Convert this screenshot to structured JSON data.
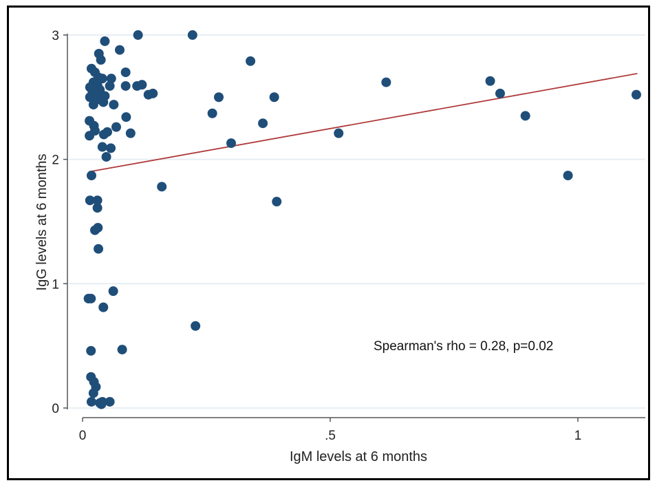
{
  "chart_data": {
    "type": "scatter",
    "xlabel": "IgM levels at 6 months",
    "ylabel": "IgG levels at 6 months",
    "xlim": [
      0,
      1.13
    ],
    "ylim": [
      0,
      3
    ],
    "x_ticks": [
      {
        "value": 0,
        "label": "0"
      },
      {
        "value": 0.5,
        "label": ".5"
      },
      {
        "value": 1,
        "label": "1"
      }
    ],
    "y_ticks": [
      {
        "value": 0,
        "label": "0"
      },
      {
        "value": 1,
        "label": "1"
      },
      {
        "value": 2,
        "label": "2"
      },
      {
        "value": 3,
        "label": "3"
      }
    ],
    "grid": "horizontal",
    "annotation": "Spearman's rho = 0.28, p=0.02",
    "colors": {
      "points": "#1f4e79",
      "fit_line": "#b03a3a",
      "grid": "#e6eef4",
      "axis": "#555555"
    },
    "fit_line": {
      "x": [
        0.013,
        1.12
      ],
      "y": [
        1.9,
        2.69
      ]
    },
    "points": [
      {
        "x": 0.033,
        "y": 2.85
      },
      {
        "x": 0.037,
        "y": 2.8
      },
      {
        "x": 0.045,
        "y": 2.95
      },
      {
        "x": 0.075,
        "y": 2.88
      },
      {
        "x": 0.112,
        "y": 3.0
      },
      {
        "x": 0.222,
        "y": 3.0
      },
      {
        "x": 0.339,
        "y": 2.79
      },
      {
        "x": 0.018,
        "y": 2.73
      },
      {
        "x": 0.025,
        "y": 2.7
      },
      {
        "x": 0.032,
        "y": 2.66
      },
      {
        "x": 0.04,
        "y": 2.65
      },
      {
        "x": 0.058,
        "y": 2.65
      },
      {
        "x": 0.087,
        "y": 2.7
      },
      {
        "x": 0.022,
        "y": 2.62
      },
      {
        "x": 0.03,
        "y": 2.6
      },
      {
        "x": 0.015,
        "y": 2.58
      },
      {
        "x": 0.035,
        "y": 2.56
      },
      {
        "x": 0.055,
        "y": 2.59
      },
      {
        "x": 0.087,
        "y": 2.59
      },
      {
        "x": 0.11,
        "y": 2.59
      },
      {
        "x": 0.12,
        "y": 2.6
      },
      {
        "x": 0.133,
        "y": 2.52
      },
      {
        "x": 0.142,
        "y": 2.53
      },
      {
        "x": 0.02,
        "y": 2.54
      },
      {
        "x": 0.03,
        "y": 2.52
      },
      {
        "x": 0.045,
        "y": 2.51
      },
      {
        "x": 0.015,
        "y": 2.5
      },
      {
        "x": 0.028,
        "y": 2.48
      },
      {
        "x": 0.042,
        "y": 2.46
      },
      {
        "x": 0.022,
        "y": 2.44
      },
      {
        "x": 0.063,
        "y": 2.44
      },
      {
        "x": 0.275,
        "y": 2.5
      },
      {
        "x": 0.387,
        "y": 2.5
      },
      {
        "x": 0.262,
        "y": 2.37
      },
      {
        "x": 0.088,
        "y": 2.34
      },
      {
        "x": 0.014,
        "y": 2.31
      },
      {
        "x": 0.364,
        "y": 2.29
      },
      {
        "x": 0.023,
        "y": 2.27
      },
      {
        "x": 0.068,
        "y": 2.26
      },
      {
        "x": 0.025,
        "y": 2.23
      },
      {
        "x": 0.05,
        "y": 2.22
      },
      {
        "x": 0.043,
        "y": 2.2
      },
      {
        "x": 0.097,
        "y": 2.21
      },
      {
        "x": 0.014,
        "y": 2.19
      },
      {
        "x": 0.3,
        "y": 2.13
      },
      {
        "x": 0.04,
        "y": 2.1
      },
      {
        "x": 0.057,
        "y": 2.09
      },
      {
        "x": 0.048,
        "y": 2.02
      },
      {
        "x": 0.517,
        "y": 2.21
      },
      {
        "x": 0.613,
        "y": 2.62
      },
      {
        "x": 0.823,
        "y": 2.63
      },
      {
        "x": 0.843,
        "y": 2.53
      },
      {
        "x": 0.894,
        "y": 2.35
      },
      {
        "x": 1.118,
        "y": 2.52
      },
      {
        "x": 0.98,
        "y": 1.87
      },
      {
        "x": 0.018,
        "y": 1.87
      },
      {
        "x": 0.16,
        "y": 1.78
      },
      {
        "x": 0.015,
        "y": 1.67
      },
      {
        "x": 0.03,
        "y": 1.67
      },
      {
        "x": 0.392,
        "y": 1.66
      },
      {
        "x": 0.03,
        "y": 1.61
      },
      {
        "x": 0.031,
        "y": 1.45
      },
      {
        "x": 0.025,
        "y": 1.43
      },
      {
        "x": 0.032,
        "y": 1.28
      },
      {
        "x": 0.012,
        "y": 0.88
      },
      {
        "x": 0.017,
        "y": 0.88
      },
      {
        "x": 0.062,
        "y": 0.94
      },
      {
        "x": 0.042,
        "y": 0.81
      },
      {
        "x": 0.228,
        "y": 0.66
      },
      {
        "x": 0.08,
        "y": 0.47
      },
      {
        "x": 0.017,
        "y": 0.46
      },
      {
        "x": 0.017,
        "y": 0.25
      },
      {
        "x": 0.023,
        "y": 0.21
      },
      {
        "x": 0.027,
        "y": 0.17
      },
      {
        "x": 0.022,
        "y": 0.12
      },
      {
        "x": 0.018,
        "y": 0.05
      },
      {
        "x": 0.035,
        "y": 0.04
      },
      {
        "x": 0.04,
        "y": 0.05
      },
      {
        "x": 0.055,
        "y": 0.05
      },
      {
        "x": 0.038,
        "y": 0.03
      }
    ]
  }
}
